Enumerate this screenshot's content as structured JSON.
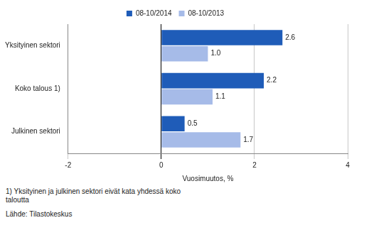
{
  "chart_data": {
    "type": "bar",
    "orientation": "horizontal",
    "categories": [
      "Yksityinen sektori",
      "Koko talous 1)",
      "Julkinen sektori"
    ],
    "series": [
      {
        "name": "08-10/2014",
        "color": "#1f5cb8",
        "values": [
          2.6,
          2.2,
          0.5
        ],
        "value_labels": [
          "2.6",
          "2.2",
          "0.5"
        ]
      },
      {
        "name": "08-10/2013",
        "color": "#a6bbe8",
        "values": [
          1.0,
          1.1,
          1.7
        ],
        "value_labels": [
          "1.0",
          "1.1",
          "1.7"
        ]
      }
    ],
    "xlim": [
      -2,
      4
    ],
    "xticks": [
      -2,
      0,
      2,
      4
    ],
    "x_label": "Vuosimuutos, %",
    "grid": true,
    "legend": "top",
    "data_labels": true,
    "footnote": "1) Yksityinen ja julkinen sektori eivät kata yhdessä koko taloutta",
    "source": "Lähde: Tilastokeskus"
  }
}
